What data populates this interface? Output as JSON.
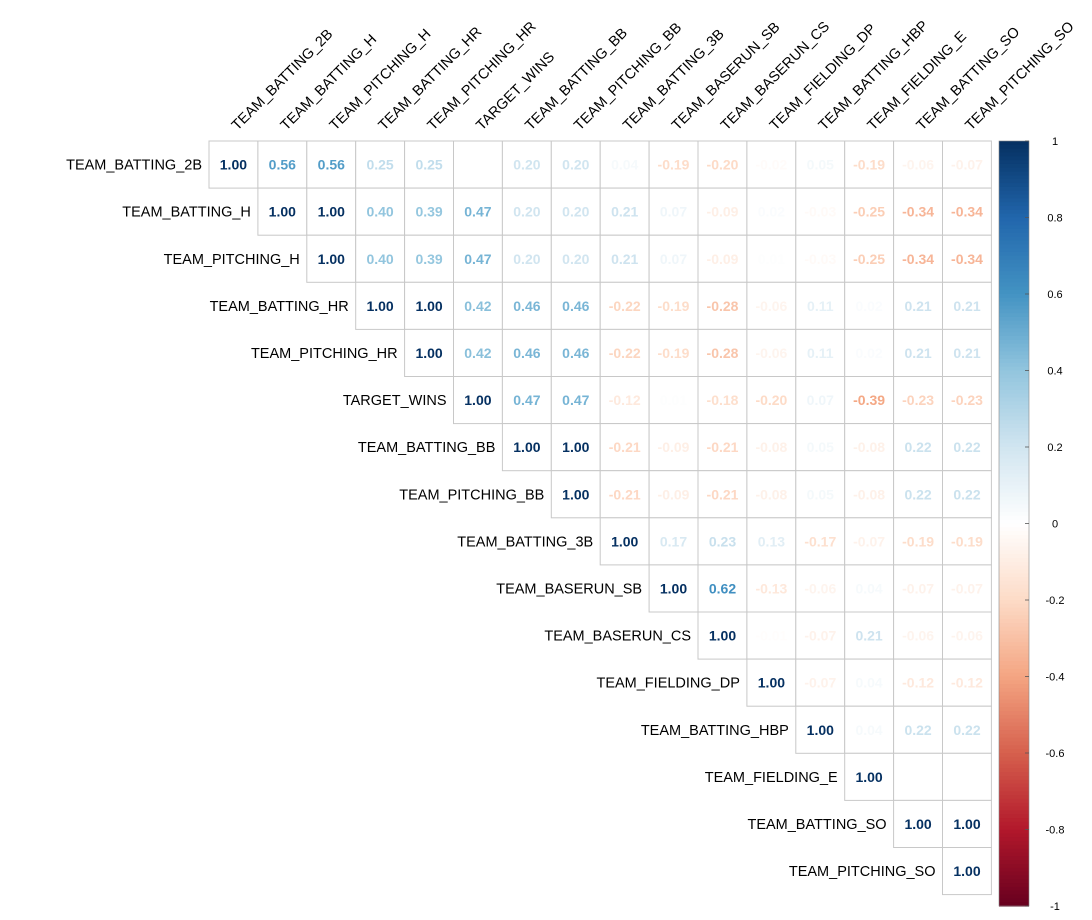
{
  "chart_data": {
    "type": "heatmap",
    "variables": [
      "TEAM_BATTING_2B",
      "TEAM_BATTING_H",
      "TEAM_PITCHING_H",
      "TEAM_BATTING_HR",
      "TEAM_PITCHING_HR",
      "TARGET_WINS",
      "TEAM_BATTING_BB",
      "TEAM_PITCHING_BB",
      "TEAM_BATTING_3B",
      "TEAM_BASERUN_SB",
      "TEAM_BASERUN_CS",
      "TEAM_FIELDING_DP",
      "TEAM_BATTING_HBP",
      "TEAM_FIELDING_E",
      "TEAM_BATTING_SO",
      "TEAM_PITCHING_SO"
    ],
    "layout": "upper-triangle",
    "matrix": [
      [
        1.0,
        0.56,
        0.56,
        0.25,
        0.25,
        null,
        0.2,
        0.2,
        0.04,
        -0.19,
        -0.2,
        -0.02,
        0.05,
        -0.19,
        -0.06,
        -0.07
      ],
      [
        null,
        1.0,
        1.0,
        0.4,
        0.39,
        0.47,
        0.2,
        0.2,
        0.21,
        0.07,
        -0.09,
        0.02,
        -0.03,
        -0.25,
        -0.34,
        -0.34
      ],
      [
        null,
        null,
        1.0,
        0.4,
        0.39,
        0.47,
        0.2,
        0.2,
        0.21,
        0.07,
        -0.09,
        0.01,
        -0.03,
        -0.25,
        -0.34,
        -0.34
      ],
      [
        null,
        null,
        null,
        1.0,
        1.0,
        0.42,
        0.46,
        0.46,
        -0.22,
        -0.19,
        -0.28,
        -0.06,
        0.11,
        0.02,
        0.21,
        0.21
      ],
      [
        null,
        null,
        null,
        null,
        1.0,
        0.42,
        0.46,
        0.46,
        -0.22,
        -0.19,
        -0.28,
        -0.06,
        0.11,
        0.02,
        0.21,
        0.21
      ],
      [
        null,
        null,
        null,
        null,
        null,
        1.0,
        0.47,
        0.47,
        -0.12,
        0.01,
        -0.18,
        -0.2,
        0.07,
        -0.39,
        -0.23,
        -0.23
      ],
      [
        null,
        null,
        null,
        null,
        null,
        null,
        1.0,
        1.0,
        -0.21,
        -0.09,
        -0.21,
        -0.08,
        0.05,
        -0.08,
        0.22,
        0.22
      ],
      [
        null,
        null,
        null,
        null,
        null,
        null,
        null,
        1.0,
        -0.21,
        -0.09,
        -0.21,
        -0.08,
        0.05,
        -0.08,
        0.22,
        0.22
      ],
      [
        null,
        null,
        null,
        null,
        null,
        null,
        null,
        null,
        1.0,
        0.17,
        0.23,
        0.13,
        -0.17,
        -0.07,
        -0.19,
        -0.19
      ],
      [
        null,
        null,
        null,
        null,
        null,
        null,
        null,
        null,
        null,
        1.0,
        0.62,
        -0.13,
        -0.06,
        0.04,
        -0.07,
        -0.07
      ],
      [
        null,
        null,
        null,
        null,
        null,
        null,
        null,
        null,
        null,
        null,
        1.0,
        -0.01,
        -0.07,
        0.21,
        -0.06,
        -0.06
      ],
      [
        null,
        null,
        null,
        null,
        null,
        null,
        null,
        null,
        null,
        null,
        null,
        1.0,
        -0.07,
        0.04,
        -0.12,
        -0.12
      ],
      [
        null,
        null,
        null,
        null,
        null,
        null,
        null,
        null,
        null,
        null,
        null,
        null,
        1.0,
        0.04,
        0.22,
        0.22
      ],
      [
        null,
        null,
        null,
        null,
        null,
        null,
        null,
        null,
        null,
        null,
        null,
        null,
        null,
        1.0,
        null,
        null
      ],
      [
        null,
        null,
        null,
        null,
        null,
        null,
        null,
        null,
        null,
        null,
        null,
        null,
        null,
        null,
        1.0,
        1.0
      ],
      [
        null,
        null,
        null,
        null,
        null,
        null,
        null,
        null,
        null,
        null,
        null,
        null,
        null,
        null,
        null,
        1.0
      ]
    ],
    "colorbar": {
      "range": [
        -1,
        1
      ],
      "ticks": [
        "1",
        "0.8",
        "0.6",
        "0.4",
        "0.2",
        "0",
        "-0.2",
        "-0.4",
        "-0.6",
        "-0.8",
        "-1"
      ],
      "colors": [
        "#67001F",
        "#B2182B",
        "#D6604D",
        "#F4A582",
        "#FDDBC7",
        "#FFFFFF",
        "#D1E5F0",
        "#92C5DE",
        "#4393C3",
        "#2166AC",
        "#053061"
      ]
    }
  }
}
